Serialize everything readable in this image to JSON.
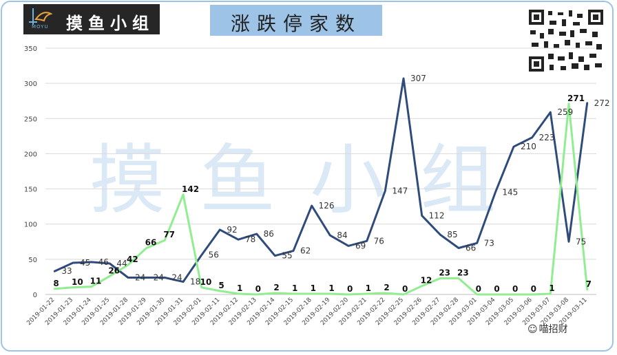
{
  "logo": {
    "brand": "摸鱼小组",
    "sub": "MOYU"
  },
  "title": "涨跌停家数",
  "watermark": "摸鱼小组",
  "source": "喵招财",
  "colors": {
    "series_a": "#2f4b7c",
    "series_b": "#90ee90",
    "grid": "#d9d9d9",
    "accent": "#9dc3e6"
  },
  "chart_data": {
    "type": "line",
    "title": "涨跌停家数",
    "xlabel": "",
    "ylabel": "",
    "ylim": [
      0,
      350
    ],
    "yticks": [
      0,
      50,
      100,
      150,
      200,
      250,
      300,
      350
    ],
    "grid": true,
    "categories": [
      "2019-01-22",
      "2019-01-23",
      "2019-01-24",
      "2019-01-25",
      "2019-01-28",
      "2019-01-29",
      "2019-01-30",
      "2019-01-31",
      "2019-02-01",
      "2019-02-11",
      "2019-02-12",
      "2019-02-13",
      "2019-02-14",
      "2019-02-15",
      "2019-02-18",
      "2019-02-19",
      "2019-02-20",
      "2019-02-21",
      "2019-02-22",
      "2019-02-25",
      "2019-02-26",
      "2019-02-27",
      "2019-02-28",
      "2019-03-01",
      "2019-03-04",
      "2019-03-05",
      "2019-03-06",
      "2019-03-07",
      "2019-03-08",
      "2019-03-11"
    ],
    "series": [
      {
        "values": [
          33,
          45,
          46,
          44,
          24,
          24,
          24,
          18,
          56,
          92,
          78,
          86,
          55,
          62,
          126,
          84,
          69,
          76,
          147,
          307,
          112,
          85,
          66,
          73,
          145,
          210,
          223,
          259,
          75,
          272
        ]
      },
      {
        "values": [
          8,
          10,
          11,
          26,
          42,
          66,
          77,
          142,
          10,
          5,
          1,
          0,
          2,
          1,
          1,
          1,
          0,
          1,
          2,
          0,
          12,
          23,
          23,
          0,
          0,
          0,
          0,
          1,
          271,
          7
        ]
      }
    ]
  }
}
